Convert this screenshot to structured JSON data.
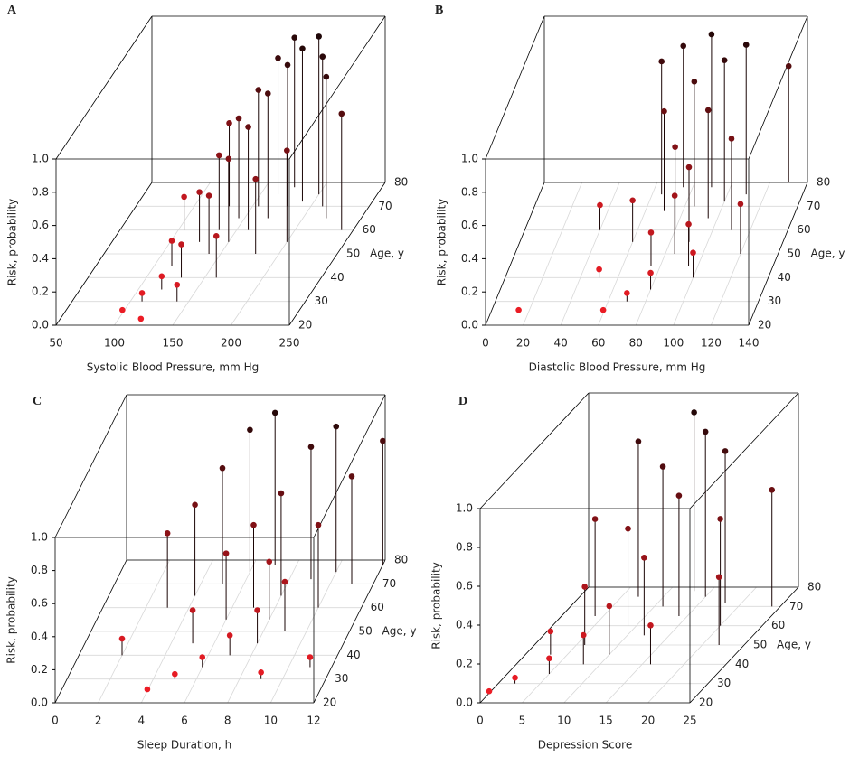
{
  "chart_data": [
    {
      "type": "scatter3d",
      "label": "A",
      "xlabel": "Systolic Blood Pressure, mm Hg",
      "ylabel": "Age, y",
      "zlabel": "Risk, probability",
      "xlim": [
        50,
        250
      ],
      "xticks": [
        50,
        100,
        150,
        200,
        250
      ],
      "ylim": [
        20,
        80
      ],
      "yticks": [
        20,
        30,
        40,
        50,
        60,
        70,
        80
      ],
      "zlim": [
        0,
        1
      ],
      "zticks": [
        {
          "value": 0,
          "label": "0.0"
        },
        {
          "value": 0.2,
          "label": "0.2"
        },
        {
          "value": 0.4,
          "label": "0.4"
        },
        {
          "value": 0.6,
          "label": "0.6"
        },
        {
          "value": 0.8,
          "label": "0.8"
        },
        {
          "value": 1,
          "label": "1.0"
        }
      ],
      "color_low": "#ee1c25",
      "color_high": "#140606",
      "points": [
        [
          100,
          25,
          0.02
        ],
        [
          110,
          30,
          0.05
        ],
        [
          120,
          35,
          0.08
        ],
        [
          115,
          45,
          0.15
        ],
        [
          130,
          40,
          0.2
        ],
        [
          125,
          55,
          0.3
        ],
        [
          140,
          50,
          0.35
        ],
        [
          135,
          60,
          0.45
        ],
        [
          150,
          55,
          0.5
        ],
        [
          145,
          65,
          0.6
        ],
        [
          160,
          60,
          0.62
        ],
        [
          155,
          70,
          0.7
        ],
        [
          170,
          65,
          0.75
        ],
        [
          165,
          75,
          0.82
        ],
        [
          180,
          70,
          0.85
        ],
        [
          175,
          78,
          0.9
        ],
        [
          190,
          72,
          0.92
        ],
        [
          200,
          75,
          0.95
        ],
        [
          210,
          70,
          0.9
        ],
        [
          220,
          65,
          0.85
        ],
        [
          140,
          30,
          0.1
        ],
        [
          160,
          40,
          0.25
        ],
        [
          180,
          50,
          0.45
        ],
        [
          200,
          55,
          0.55
        ],
        [
          120,
          22,
          0.01
        ],
        [
          105,
          60,
          0.2
        ],
        [
          130,
          70,
          0.5
        ],
        [
          240,
          60,
          0.7
        ]
      ]
    },
    {
      "type": "scatter3d",
      "label": "B",
      "xlabel": "Diastolic Blood Pressure, mm Hg",
      "ylabel": "Age, y",
      "zlabel": "Risk, probability",
      "xlim": [
        0,
        140
      ],
      "xticks": [
        0,
        20,
        40,
        60,
        80,
        100,
        120,
        140
      ],
      "ylim": [
        20,
        80
      ],
      "yticks": [
        20,
        30,
        40,
        50,
        60,
        70,
        80
      ],
      "zlim": [
        0,
        1
      ],
      "zticks": [
        {
          "value": 0,
          "label": "0.0"
        },
        {
          "value": 0.2,
          "label": "0.2"
        },
        {
          "value": 0.4,
          "label": "0.4"
        },
        {
          "value": 0.6,
          "label": "0.6"
        },
        {
          "value": 0.8,
          "label": "0.8"
        },
        {
          "value": 1,
          "label": "1.0"
        }
      ],
      "color_low": "#ee1c25",
      "color_high": "#140606",
      "points": [
        [
          60,
          25,
          0.02
        ],
        [
          70,
          30,
          0.05
        ],
        [
          80,
          35,
          0.1
        ],
        [
          75,
          45,
          0.2
        ],
        [
          85,
          50,
          0.35
        ],
        [
          90,
          55,
          0.45
        ],
        [
          80,
          60,
          0.5
        ],
        [
          95,
          65,
          0.65
        ],
        [
          85,
          70,
          0.75
        ],
        [
          100,
          72,
          0.85
        ],
        [
          90,
          78,
          0.92
        ],
        [
          70,
          68,
          0.6
        ],
        [
          60,
          55,
          0.25
        ],
        [
          110,
          60,
          0.55
        ],
        [
          120,
          50,
          0.3
        ],
        [
          50,
          40,
          0.05
        ],
        [
          40,
          60,
          0.15
        ],
        [
          15,
          25,
          0.02
        ],
        [
          100,
          40,
          0.15
        ],
        [
          110,
          75,
          0.9
        ],
        [
          75,
          78,
          0.85
        ],
        [
          65,
          75,
          0.8
        ],
        [
          95,
          45,
          0.25
        ],
        [
          130,
          80,
          0.7
        ]
      ]
    },
    {
      "type": "scatter3d",
      "label": "C",
      "xlabel": "Sleep Duration, h",
      "ylabel": "Age, y",
      "zlabel": "Risk, probability",
      "xlim": [
        0,
        12
      ],
      "xticks": [
        0,
        2,
        4,
        6,
        8,
        10,
        12
      ],
      "ylim": [
        20,
        80
      ],
      "yticks": [
        20,
        30,
        40,
        50,
        60,
        70,
        80
      ],
      "zlim": [
        0,
        1
      ],
      "zticks": [
        {
          "value": 0,
          "label": "0.0"
        },
        {
          "value": 0.2,
          "label": "0.2"
        },
        {
          "value": 0.4,
          "label": "0.4"
        },
        {
          "value": 0.6,
          "label": "0.6"
        },
        {
          "value": 0.8,
          "label": "0.8"
        },
        {
          "value": 1,
          "label": "1.0"
        }
      ],
      "color_low": "#ee1c25",
      "color_high": "#140606",
      "points": [
        [
          4,
          25,
          0.01
        ],
        [
          5,
          30,
          0.03
        ],
        [
          6,
          35,
          0.06
        ],
        [
          7,
          40,
          0.12
        ],
        [
          8,
          45,
          0.2
        ],
        [
          9,
          50,
          0.3
        ],
        [
          6,
          55,
          0.4
        ],
        [
          7,
          60,
          0.5
        ],
        [
          8,
          65,
          0.62
        ],
        [
          5,
          70,
          0.7
        ],
        [
          9,
          72,
          0.8
        ],
        [
          10,
          75,
          0.88
        ],
        [
          7,
          78,
          0.92
        ],
        [
          6,
          75,
          0.86
        ],
        [
          8,
          55,
          0.35
        ],
        [
          10,
          60,
          0.5
        ],
        [
          11,
          70,
          0.65
        ],
        [
          4,
          65,
          0.55
        ],
        [
          3,
          60,
          0.45
        ],
        [
          2,
          40,
          0.1
        ],
        [
          12,
          78,
          0.75
        ],
        [
          5,
          45,
          0.2
        ],
        [
          9,
          30,
          0.04
        ],
        [
          11,
          35,
          0.06
        ]
      ]
    },
    {
      "type": "scatter3d",
      "label": "D",
      "xlabel": "Depression Score",
      "ylabel": "Age, y",
      "zlabel": "Risk, probability",
      "xlim": [
        0,
        25
      ],
      "xticks": [
        0,
        5,
        10,
        15,
        20,
        25
      ],
      "ylim": [
        20,
        80
      ],
      "yticks": [
        20,
        30,
        40,
        50,
        60,
        70,
        80
      ],
      "zlim": [
        0,
        1
      ],
      "zticks": [
        {
          "value": 0,
          "label": "0.0"
        },
        {
          "value": 0.2,
          "label": "0.2"
        },
        {
          "value": 0.4,
          "label": "0.4"
        },
        {
          "value": 0.6,
          "label": "0.6"
        },
        {
          "value": 0.8,
          "label": "0.8"
        },
        {
          "value": 1,
          "label": "1.0"
        }
      ],
      "color_low": "#ee1c25",
      "color_high": "#140606",
      "points": [
        [
          0,
          25,
          0.01
        ],
        [
          2,
          30,
          0.03
        ],
        [
          5,
          35,
          0.08
        ],
        [
          8,
          40,
          0.15
        ],
        [
          10,
          45,
          0.25
        ],
        [
          6,
          50,
          0.3
        ],
        [
          12,
          55,
          0.4
        ],
        [
          9,
          60,
          0.5
        ],
        [
          14,
          65,
          0.62
        ],
        [
          11,
          70,
          0.72
        ],
        [
          15,
          75,
          0.85
        ],
        [
          13,
          78,
          0.92
        ],
        [
          18,
          72,
          0.78
        ],
        [
          20,
          60,
          0.55
        ],
        [
          22,
          50,
          0.35
        ],
        [
          4,
          65,
          0.5
        ],
        [
          16,
          40,
          0.2
        ],
        [
          24,
          70,
          0.6
        ],
        [
          3,
          45,
          0.12
        ],
        [
          7,
          75,
          0.8
        ]
      ]
    }
  ]
}
